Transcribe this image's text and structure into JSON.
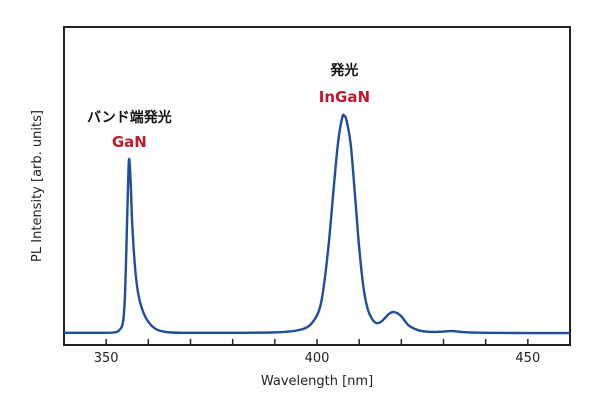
{
  "chart_data": {
    "type": "line",
    "title": "",
    "xlabel": "Wavelength [nm]",
    "ylabel": "PL Intensity [arb. units]",
    "xlim": [
      340,
      460
    ],
    "ylim": [
      0,
      1
    ],
    "x_ticks": [
      350,
      400,
      450
    ],
    "x_tick_labels": [
      "350",
      "400",
      "450"
    ],
    "grid": false,
    "legend": "none",
    "line_color": "#1f4e9e",
    "annotation_colors": {
      "name": "#111111",
      "material": "#c0182c"
    },
    "annotations": [
      {
        "text": "バンド端発光",
        "material": "GaN",
        "x": 355.5
      },
      {
        "text": "発光",
        "material": "InGaN",
        "x": 406.5
      }
    ],
    "series": [
      {
        "x": [
          340,
          345,
          350,
          352,
          353,
          354,
          354.5,
          355,
          355.3,
          355.5,
          355.8,
          356.2,
          356.8,
          357.5,
          358.5,
          360,
          362,
          365,
          370,
          380,
          390,
          395,
          398,
          400,
          401,
          402,
          403,
          404,
          405,
          406,
          406.5,
          407,
          408,
          409,
          410,
          411,
          412,
          413,
          414,
          415,
          416,
          417,
          418,
          419,
          420,
          421,
          422,
          424,
          426,
          428,
          430,
          432,
          435,
          440,
          450,
          460
        ],
        "y": [
          0.01,
          0.01,
          0.01,
          0.012,
          0.02,
          0.06,
          0.2,
          0.55,
          0.76,
          0.8,
          0.7,
          0.5,
          0.32,
          0.2,
          0.12,
          0.06,
          0.025,
          0.012,
          0.01,
          0.01,
          0.012,
          0.02,
          0.04,
          0.09,
          0.15,
          0.28,
          0.46,
          0.68,
          0.88,
          0.995,
          1.0,
          0.98,
          0.87,
          0.64,
          0.4,
          0.22,
          0.12,
          0.075,
          0.055,
          0.058,
          0.075,
          0.095,
          0.105,
          0.1,
          0.085,
          0.06,
          0.04,
          0.022,
          0.015,
          0.014,
          0.016,
          0.018,
          0.013,
          0.01,
          0.009,
          0.009
        ]
      }
    ]
  }
}
